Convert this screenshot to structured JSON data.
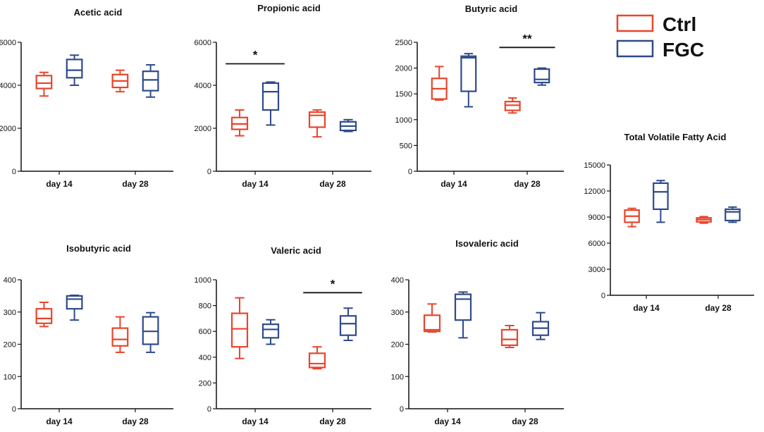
{
  "legend": {
    "entries": [
      {
        "label": "Ctrl",
        "color": "#e8452c"
      },
      {
        "label": "FGC",
        "color": "#2e4a8a"
      }
    ]
  },
  "chart_data": [
    {
      "type": "boxplot",
      "title": "Acetic acid",
      "categories": [
        "day 14",
        "day 28"
      ],
      "ylim": [
        0,
        6000
      ],
      "yticks": [
        0,
        2000,
        4000,
        6000
      ],
      "series": [
        {
          "name": "Ctrl",
          "boxes": [
            {
              "min": 3500,
              "q1": 3850,
              "median": 4100,
              "q3": 4450,
              "max": 4600
            },
            {
              "min": 3700,
              "q1": 3900,
              "median": 4200,
              "q3": 4500,
              "max": 4700
            }
          ]
        },
        {
          "name": "FGC",
          "boxes": [
            {
              "min": 4000,
              "q1": 4350,
              "median": 4700,
              "q3": 5200,
              "max": 5400
            },
            {
              "min": 3450,
              "q1": 3750,
              "median": 4250,
              "q3": 4650,
              "max": 4950
            }
          ]
        }
      ],
      "significance": []
    },
    {
      "type": "boxplot",
      "title": "Propionic acid",
      "categories": [
        "day 14",
        "day 28"
      ],
      "ylim": [
        0,
        6000
      ],
      "yticks": [
        0,
        2000,
        4000,
        6000
      ],
      "series": [
        {
          "name": "Ctrl",
          "boxes": [
            {
              "min": 1650,
              "q1": 1950,
              "median": 2200,
              "q3": 2500,
              "max": 2850
            },
            {
              "min": 1600,
              "q1": 2050,
              "median": 2600,
              "q3": 2750,
              "max": 2850
            }
          ]
        },
        {
          "name": "FGC",
          "boxes": [
            {
              "min": 2150,
              "q1": 2850,
              "median": 3700,
              "q3": 4100,
              "max": 4150
            },
            {
              "min": 1850,
              "q1": 1900,
              "median": 2100,
              "q3": 2300,
              "max": 2400
            }
          ]
        }
      ],
      "significance": [
        {
          "category": "day 14",
          "label": "*",
          "y": 5000
        }
      ]
    },
    {
      "type": "boxplot",
      "title": "Butyric acid",
      "categories": [
        "day 14",
        "day 28"
      ],
      "ylim": [
        0,
        2500
      ],
      "yticks": [
        0,
        500,
        1000,
        1500,
        2000,
        2500
      ],
      "series": [
        {
          "name": "Ctrl",
          "boxes": [
            {
              "min": 1380,
              "q1": 1400,
              "median": 1600,
              "q3": 1800,
              "max": 2030
            },
            {
              "min": 1130,
              "q1": 1180,
              "median": 1280,
              "q3": 1350,
              "max": 1420
            }
          ]
        },
        {
          "name": "FGC",
          "boxes": [
            {
              "min": 1250,
              "q1": 1550,
              "median": 2200,
              "q3": 2230,
              "max": 2280
            },
            {
              "min": 1670,
              "q1": 1720,
              "median": 1780,
              "q3": 1980,
              "max": 2000
            }
          ]
        }
      ],
      "significance": [
        {
          "category": "day 28",
          "label": "**",
          "y": 2400
        }
      ]
    },
    {
      "type": "boxplot",
      "title": "Total Volatile Fatty Acid",
      "categories": [
        "day 14",
        "day 28"
      ],
      "ylim": [
        0,
        15000
      ],
      "yticks": [
        0,
        3000,
        6000,
        9000,
        12000,
        15000
      ],
      "series": [
        {
          "name": "Ctrl",
          "boxes": [
            {
              "min": 7900,
              "q1": 8400,
              "median": 9100,
              "q3": 9800,
              "max": 10000
            },
            {
              "min": 8300,
              "q1": 8450,
              "median": 8700,
              "q3": 8900,
              "max": 9050
            }
          ]
        },
        {
          "name": "FGC",
          "boxes": [
            {
              "min": 8400,
              "q1": 9900,
              "median": 11900,
              "q3": 12900,
              "max": 13200
            },
            {
              "min": 8400,
              "q1": 8600,
              "median": 9600,
              "q3": 9900,
              "max": 10150
            }
          ]
        }
      ],
      "significance": []
    },
    {
      "type": "boxplot",
      "title": "Isobutyric acid",
      "categories": [
        "day 14",
        "day 28"
      ],
      "ylim": [
        0,
        400
      ],
      "yticks": [
        0,
        100,
        200,
        300,
        400
      ],
      "series": [
        {
          "name": "Ctrl",
          "boxes": [
            {
              "min": 255,
              "q1": 265,
              "median": 280,
              "q3": 310,
              "max": 330
            },
            {
              "min": 175,
              "q1": 195,
              "median": 215,
              "q3": 250,
              "max": 285
            }
          ]
        },
        {
          "name": "FGC",
          "boxes": [
            {
              "min": 275,
              "q1": 310,
              "median": 340,
              "q3": 350,
              "max": 352
            },
            {
              "min": 175,
              "q1": 200,
              "median": 240,
              "q3": 285,
              "max": 298
            }
          ]
        }
      ],
      "significance": []
    },
    {
      "type": "boxplot",
      "title": "Valeric acid",
      "categories": [
        "day 14",
        "day 28"
      ],
      "ylim": [
        0,
        1000
      ],
      "yticks": [
        0,
        200,
        400,
        600,
        800,
        1000
      ],
      "series": [
        {
          "name": "Ctrl",
          "boxes": [
            {
              "min": 390,
              "q1": 480,
              "median": 620,
              "q3": 740,
              "max": 860
            },
            {
              "min": 310,
              "q1": 320,
              "median": 350,
              "q3": 430,
              "max": 480
            }
          ]
        },
        {
          "name": "FGC",
          "boxes": [
            {
              "min": 500,
              "q1": 550,
              "median": 615,
              "q3": 655,
              "max": 690
            },
            {
              "min": 530,
              "q1": 570,
              "median": 660,
              "q3": 720,
              "max": 780
            }
          ]
        }
      ],
      "significance": [
        {
          "category": "day 28",
          "label": "*",
          "y": 900
        }
      ]
    },
    {
      "type": "boxplot",
      "title": "Isovaleric acid",
      "categories": [
        "day 14",
        "day 28"
      ],
      "ylim": [
        0,
        400
      ],
      "yticks": [
        0,
        100,
        200,
        300,
        400
      ],
      "series": [
        {
          "name": "Ctrl",
          "boxes": [
            {
              "min": 238,
              "q1": 240,
              "median": 245,
              "q3": 290,
              "max": 325
            },
            {
              "min": 190,
              "q1": 197,
              "median": 215,
              "q3": 245,
              "max": 258
            }
          ]
        },
        {
          "name": "FGC",
          "boxes": [
            {
              "min": 220,
              "q1": 275,
              "median": 340,
              "q3": 355,
              "max": 362
            },
            {
              "min": 215,
              "q1": 228,
              "median": 250,
              "q3": 270,
              "max": 298
            }
          ]
        }
      ],
      "significance": []
    }
  ]
}
